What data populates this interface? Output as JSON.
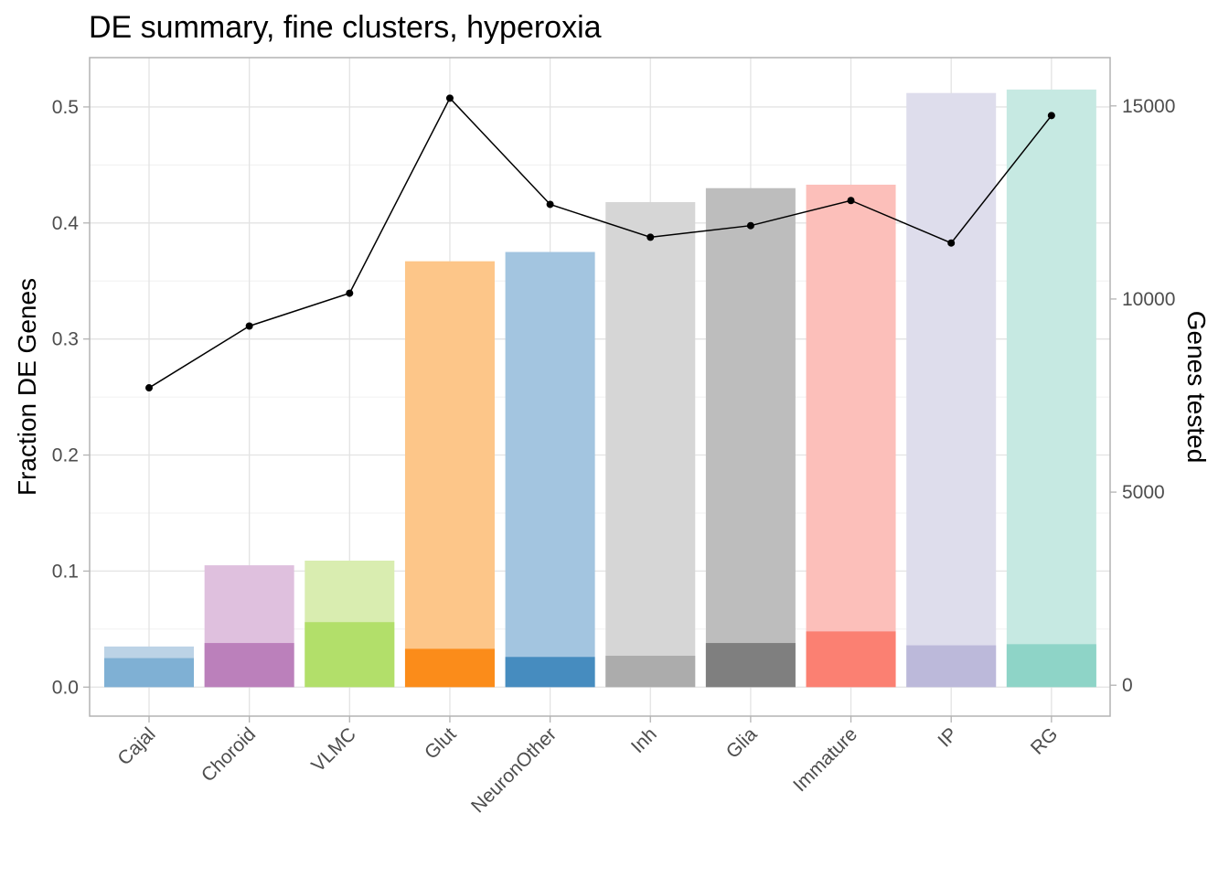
{
  "chart_data": {
    "type": "bar",
    "title": "DE summary, fine clusters, hyperoxia",
    "xlabel": "",
    "ylabel": "Fraction DE Genes",
    "y2label": "Genes tested",
    "categories": [
      "Cajal",
      "Choroid",
      "VLMC",
      "Glut",
      "NeuronOther",
      "Inh",
      "Glia",
      "Immature",
      "IP",
      "RG"
    ],
    "ylim": [
      -0.025,
      0.5425
    ],
    "y2lim": [
      -800,
      16250
    ],
    "yticks": [
      "0.0",
      "0.1",
      "0.2",
      "0.3",
      "0.4",
      "0.5"
    ],
    "y2ticks": [
      "0",
      "5000",
      "10000",
      "15000"
    ],
    "series": [
      {
        "kind": "bar-light",
        "values": [
          0.035,
          0.105,
          0.109,
          0.367,
          0.375,
          0.418,
          0.43,
          0.433,
          0.512,
          0.515
        ]
      },
      {
        "kind": "bar-dark",
        "values": [
          0.025,
          0.038,
          0.056,
          0.033,
          0.026,
          0.027,
          0.038,
          0.048,
          0.036,
          0.037
        ]
      },
      {
        "kind": "line-genes-tested",
        "values": [
          7700,
          9300,
          10150,
          15200,
          12450,
          11600,
          11900,
          12550,
          11450,
          14750
        ]
      }
    ],
    "colors": {
      "light": [
        "#bcd3e6",
        "#dfc0de",
        "#d9edb0",
        "#fdc689",
        "#a3c5e0",
        "#d6d6d6",
        "#bdbdbd",
        "#fcbfba",
        "#deddec",
        "#c6e9e2"
      ],
      "dark": [
        "#7fb0d4",
        "#bb80bb",
        "#b2df6a",
        "#fb8c1a",
        "#468cbf",
        "#acacac",
        "#7f7f7f",
        "#fb8072",
        "#bcb9da",
        "#8ed4c7"
      ],
      "line": "#000000"
    },
    "grid": true
  }
}
